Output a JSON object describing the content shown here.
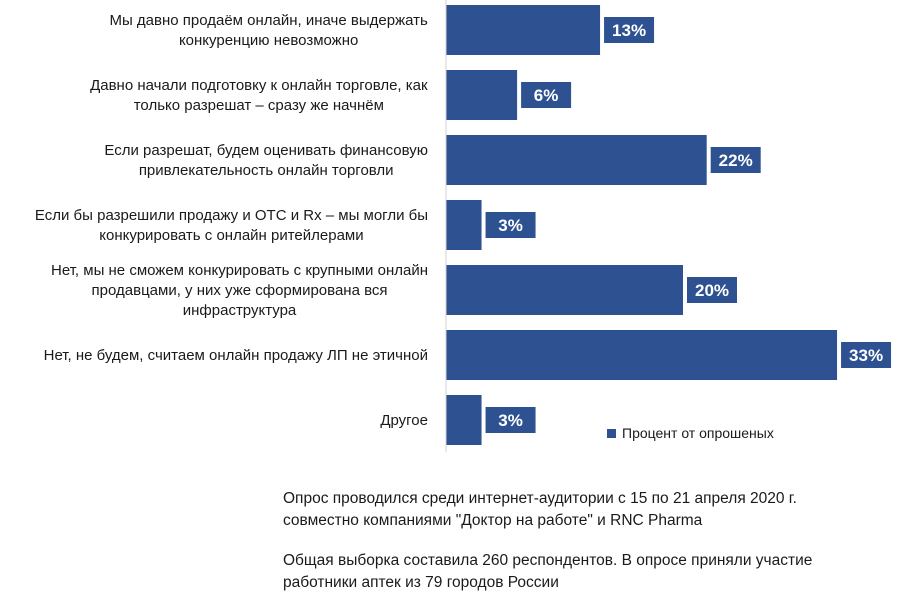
{
  "chart_data": {
    "type": "bar",
    "orientation": "horizontal",
    "categories": [
      [
        "Мы давно продаём онлайн, иначе выдержать",
        "конкуренцию невозможно"
      ],
      [
        "Давно начали подготовку к онлайн торговле, как",
        "только разрешат – сразу же начнём"
      ],
      [
        "Если разрешат, будем оценивать финансовую",
        "привлекательность онлайн торговли"
      ],
      [
        "Если бы разрешили продажу и ОТС и Rx – мы могли бы",
        "конкурировать с онлайн ритейлерами"
      ],
      [
        "Нет, мы не сможем конкурировать с крупными онлайн",
        "продавцами, у них уже сформирована вся",
        "инфраструктура"
      ],
      [
        "Нет, не будем, считаем онлайн продажу ЛП не этичной"
      ],
      [
        "Другое"
      ]
    ],
    "series": [
      {
        "name": "Процент от опрошеных",
        "values": [
          13,
          6,
          22,
          3,
          20,
          33,
          3
        ],
        "labels": [
          "13%",
          "6%",
          "22%",
          "3%",
          "20%",
          "33%",
          "3%"
        ]
      }
    ],
    "xlim": [
      0,
      35
    ],
    "grid": false,
    "legend_position": "bottom-right",
    "bar_color": "#2e5291",
    "label_box_color": "#2e5291",
    "axis_color": "#d0d0d0"
  },
  "notes": [
    [
      "Опрос проводился среди интернет-аудитории с 15 по 21 апреля 2020 г.",
      "совместно компаниями \"Доктор на работе\" и RNC Pharma"
    ],
    [
      "Общая выборка составила 260 респондентов. В опросе приняли участие",
      "работники аптек из 79 городов России"
    ]
  ]
}
